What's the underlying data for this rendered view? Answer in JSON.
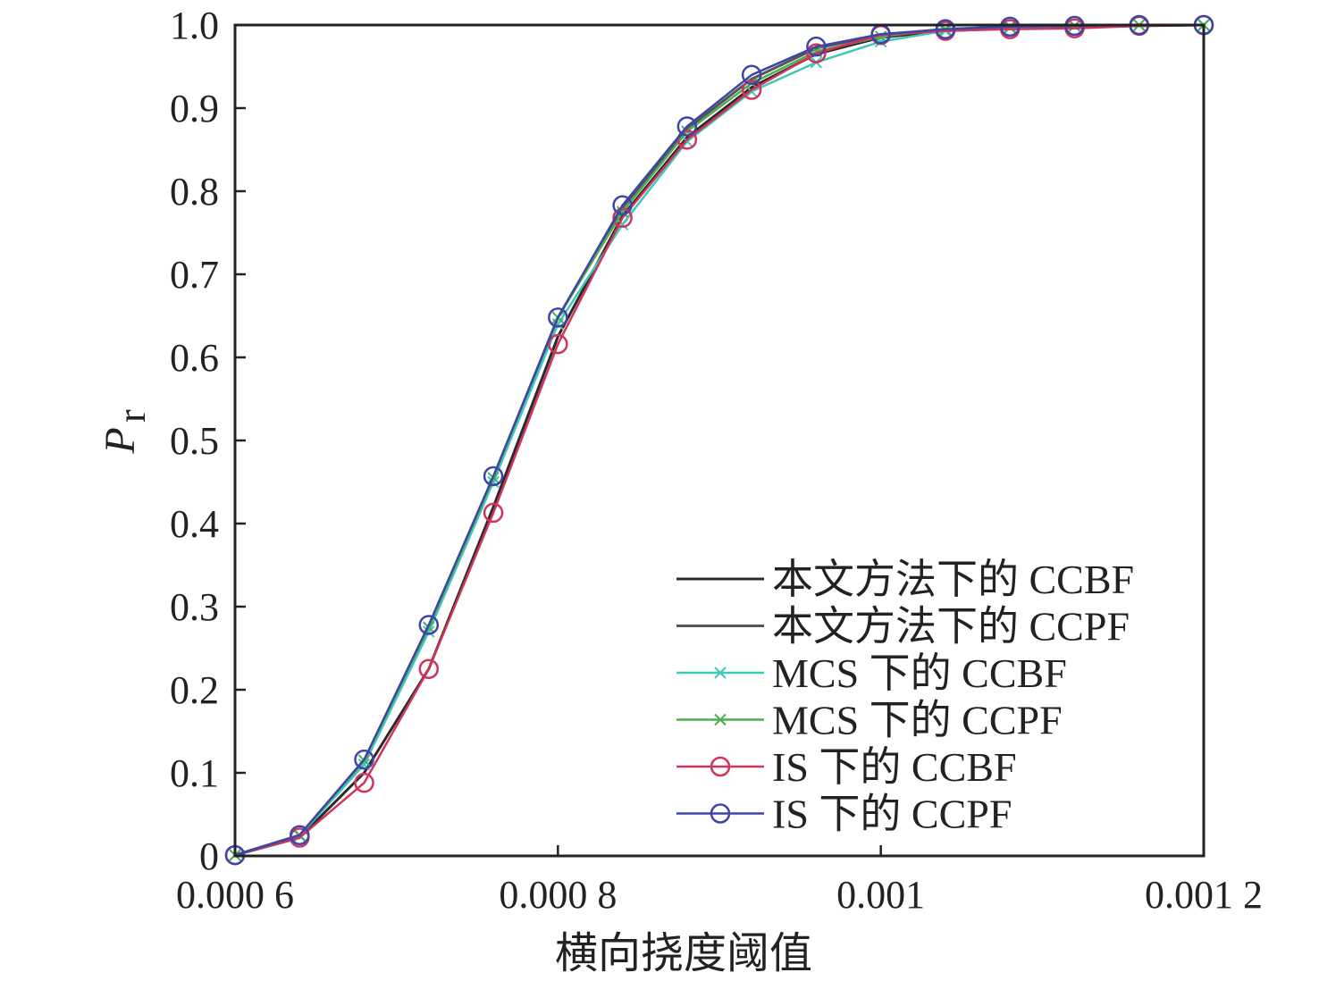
{
  "chart_data": {
    "type": "line",
    "xlabel": "横向挠度阈值",
    "ylabel": "P",
    "ylabel_sub": "r",
    "xlim": [
      0.0006,
      0.0012
    ],
    "ylim": [
      0,
      1.0
    ],
    "x_ticks": [
      {
        "value": 0.0006,
        "label": "0.000 6"
      },
      {
        "value": 0.0008,
        "label": "0.000 8"
      },
      {
        "value": 0.001,
        "label": "0.001"
      },
      {
        "value": 0.0012,
        "label": "0.001 2"
      }
    ],
    "y_ticks": [
      {
        "value": 0,
        "label": "0"
      },
      {
        "value": 0.1,
        "label": "0.1"
      },
      {
        "value": 0.2,
        "label": "0.2"
      },
      {
        "value": 0.3,
        "label": "0.3"
      },
      {
        "value": 0.4,
        "label": "0.4"
      },
      {
        "value": 0.5,
        "label": "0.5"
      },
      {
        "value": 0.6,
        "label": "0.6"
      },
      {
        "value": 0.7,
        "label": "0.7"
      },
      {
        "value": 0.8,
        "label": "0.8"
      },
      {
        "value": 0.9,
        "label": "0.9"
      },
      {
        "value": 1.0,
        "label": "1.0"
      }
    ],
    "grid": false,
    "legend_position": "bottom-right",
    "series": [
      {
        "name": "本文方法下的 CCBF",
        "color": "#2a2a2a",
        "marker": "none",
        "x": [
          0.0006,
          0.00064,
          0.00068,
          0.00072,
          0.00076,
          0.0008,
          0.00084,
          0.00088,
          0.00092,
          0.00096,
          0.001,
          0.00104,
          0.00108,
          0.00112,
          0.00116,
          0.0012
        ],
        "y": [
          0.001,
          0.022,
          0.1,
          0.225,
          0.42,
          0.625,
          0.77,
          0.865,
          0.925,
          0.965,
          0.985,
          0.993,
          0.996,
          0.998,
          0.999,
          1.0
        ]
      },
      {
        "name": "本文方法下的 CCPF",
        "color": "#555555",
        "marker": "none",
        "x": [
          0.0006,
          0.00064,
          0.00068,
          0.00072,
          0.00076,
          0.0008,
          0.00084,
          0.00088,
          0.00092,
          0.00096,
          0.001,
          0.00104,
          0.00108,
          0.00112,
          0.00116,
          0.0012
        ],
        "y": [
          0.001,
          0.025,
          0.115,
          0.275,
          0.455,
          0.648,
          0.78,
          0.875,
          0.935,
          0.972,
          0.988,
          0.995,
          0.998,
          0.999,
          1.0,
          1.0
        ]
      },
      {
        "name": "MCS 下的 CCBF",
        "color": "#3ec8b8",
        "marker": "x",
        "x": [
          0.0006,
          0.00064,
          0.00068,
          0.00072,
          0.00076,
          0.0008,
          0.00084,
          0.00088,
          0.00092,
          0.00096,
          0.001,
          0.00104,
          0.00108,
          0.00112,
          0.00116,
          0.0012
        ],
        "y": [
          0.001,
          0.024,
          0.11,
          0.27,
          0.45,
          0.64,
          0.76,
          0.86,
          0.92,
          0.955,
          0.98,
          0.993,
          0.997,
          0.999,
          1.0,
          1.0
        ]
      },
      {
        "name": "MCS 下的 CCPF",
        "color": "#4caf50",
        "marker": "x",
        "x": [
          0.0006,
          0.00064,
          0.00068,
          0.00072,
          0.00076,
          0.0008,
          0.00084,
          0.00088,
          0.00092,
          0.00096,
          0.001,
          0.00104,
          0.00108,
          0.00112,
          0.00116,
          0.0012
        ],
        "y": [
          0.001,
          0.025,
          0.115,
          0.275,
          0.455,
          0.648,
          0.775,
          0.872,
          0.93,
          0.968,
          0.986,
          0.995,
          0.998,
          0.999,
          1.0,
          1.0
        ]
      },
      {
        "name": "IS 下的 CCBF",
        "color": "#d1345b",
        "marker": "o",
        "x": [
          0.0006,
          0.00064,
          0.00068,
          0.00072,
          0.00076,
          0.0008,
          0.00084,
          0.00088,
          0.00092,
          0.00096,
          0.001,
          0.00104,
          0.00108,
          0.00112,
          0.00116,
          0.0012
        ],
        "y": [
          0.001,
          0.022,
          0.088,
          0.225,
          0.413,
          0.616,
          0.768,
          0.862,
          0.922,
          0.966,
          0.988,
          0.993,
          0.995,
          0.996,
          0.999,
          1.0
        ]
      },
      {
        "name": "IS 下的 CCPF",
        "color": "#3f45a8",
        "marker": "o",
        "x": [
          0.0006,
          0.00064,
          0.00068,
          0.00072,
          0.00076,
          0.0008,
          0.00084,
          0.00088,
          0.00092,
          0.00096,
          0.001,
          0.00104,
          0.00108,
          0.00112,
          0.00116,
          0.0012
        ],
        "y": [
          0.001,
          0.025,
          0.116,
          0.278,
          0.457,
          0.648,
          0.783,
          0.878,
          0.94,
          0.974,
          0.989,
          0.995,
          0.998,
          0.999,
          1.0,
          1.0
        ]
      }
    ]
  }
}
